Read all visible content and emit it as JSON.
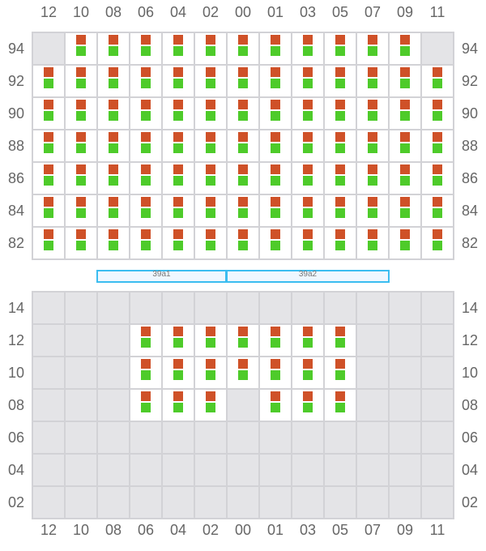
{
  "columns": [
    "12",
    "10",
    "08",
    "06",
    "04",
    "02",
    "00",
    "01",
    "03",
    "05",
    "07",
    "09",
    "11"
  ],
  "top": {
    "rows": [
      "94",
      "92",
      "90",
      "88",
      "86",
      "84",
      "82"
    ],
    "occupied": [
      [
        0,
        1,
        1,
        1,
        1,
        1,
        1,
        1,
        1,
        1,
        1,
        1,
        0
      ],
      [
        1,
        1,
        1,
        1,
        1,
        1,
        1,
        1,
        1,
        1,
        1,
        1,
        1
      ],
      [
        1,
        1,
        1,
        1,
        1,
        1,
        1,
        1,
        1,
        1,
        1,
        1,
        1
      ],
      [
        1,
        1,
        1,
        1,
        1,
        1,
        1,
        1,
        1,
        1,
        1,
        1,
        1
      ],
      [
        1,
        1,
        1,
        1,
        1,
        1,
        1,
        1,
        1,
        1,
        1,
        1,
        1
      ],
      [
        1,
        1,
        1,
        1,
        1,
        1,
        1,
        1,
        1,
        1,
        1,
        1,
        1
      ],
      [
        1,
        1,
        1,
        1,
        1,
        1,
        1,
        1,
        1,
        1,
        1,
        1,
        1
      ]
    ]
  },
  "bottom": {
    "rows": [
      "14",
      "12",
      "10",
      "08",
      "06",
      "04",
      "02"
    ],
    "occupied": [
      [
        0,
        0,
        0,
        0,
        0,
        0,
        0,
        0,
        0,
        0,
        0,
        0,
        0
      ],
      [
        0,
        0,
        0,
        1,
        1,
        1,
        1,
        1,
        1,
        1,
        0,
        0,
        0
      ],
      [
        0,
        0,
        0,
        1,
        1,
        1,
        1,
        1,
        1,
        1,
        0,
        0,
        0
      ],
      [
        0,
        0,
        0,
        1,
        1,
        1,
        0,
        1,
        1,
        1,
        0,
        0,
        0
      ],
      [
        0,
        0,
        0,
        0,
        0,
        0,
        0,
        0,
        0,
        0,
        0,
        0,
        0
      ],
      [
        0,
        0,
        0,
        0,
        0,
        0,
        0,
        0,
        0,
        0,
        0,
        0,
        0
      ],
      [
        0,
        0,
        0,
        0,
        0,
        0,
        0,
        0,
        0,
        0,
        0,
        0,
        0
      ]
    ]
  },
  "blocks": [
    "39a1",
    "39a2"
  ],
  "colors": {
    "top_marker": "#cf5128",
    "bottom_marker": "#4ecb2a",
    "empty": "#e4e4e7",
    "block_border": "#3bbdf0"
  }
}
